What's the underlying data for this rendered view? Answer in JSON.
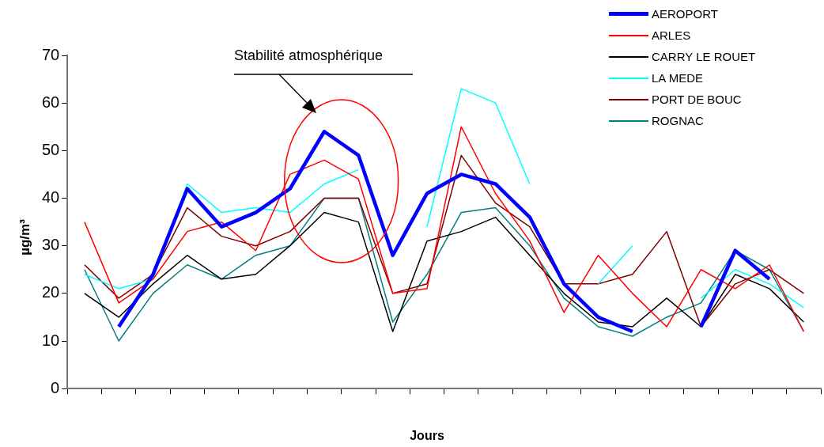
{
  "chart_data": {
    "type": "line",
    "xlabel": "Jours",
    "ylabel": "µg/m³",
    "categories": [
      null,
      null,
      null,
      null,
      null,
      null,
      null,
      null,
      null,
      null,
      null,
      null,
      null,
      null,
      null,
      null,
      null,
      null,
      null,
      null,
      null,
      null
    ],
    "ylim": [
      0,
      70
    ],
    "yticks": [
      0,
      10,
      20,
      30,
      40,
      50,
      60,
      70
    ],
    "grid": false,
    "legend": "top right",
    "marker": "none",
    "line_style": "solid",
    "annotations": [
      "Stabilité atmosphérique"
    ],
    "series": [
      {
        "name": "AEROPORT",
        "color": "#0000ff",
        "values": [
          null,
          13,
          24,
          42,
          34,
          37,
          42,
          54,
          49,
          28,
          41,
          45,
          43,
          36,
          22,
          15,
          12,
          null,
          13,
          29,
          23,
          null
        ]
      },
      {
        "name": "ARLES",
        "color": "#ff0000",
        "values": [
          35,
          18,
          23,
          33,
          35,
          29,
          45,
          48,
          44,
          20,
          21,
          55,
          41,
          31,
          16,
          28,
          20,
          13,
          25,
          21,
          26,
          12
        ]
      },
      {
        "name": "CARRY LE ROUET",
        "color": "#000000",
        "values": [
          20,
          15,
          22,
          28,
          23,
          24,
          30,
          37,
          35,
          12,
          31,
          33,
          36,
          28,
          20,
          14,
          13,
          19,
          13,
          24,
          21,
          14
        ]
      },
      {
        "name": "LA MEDE",
        "color": "#00ffff",
        "values": [
          24,
          21,
          23,
          43,
          37,
          38,
          37,
          43,
          46,
          null,
          34,
          63,
          60,
          43,
          null,
          22,
          30,
          null,
          19,
          25,
          22,
          17
        ]
      },
      {
        "name": "PORT DE BOUC",
        "color": "#800000",
        "values": [
          26,
          19,
          24,
          38,
          32,
          30,
          33,
          40,
          40,
          20,
          22,
          49,
          39,
          34,
          22,
          22,
          24,
          33,
          13,
          22,
          25,
          20
        ]
      },
      {
        "name": "ROGNAC",
        "color": "#008080",
        "values": [
          25,
          10,
          20,
          26,
          23,
          28,
          30,
          40,
          40,
          14,
          24,
          37,
          38,
          30,
          19,
          13,
          11,
          15,
          18,
          29,
          25,
          12
        ]
      }
    ]
  }
}
